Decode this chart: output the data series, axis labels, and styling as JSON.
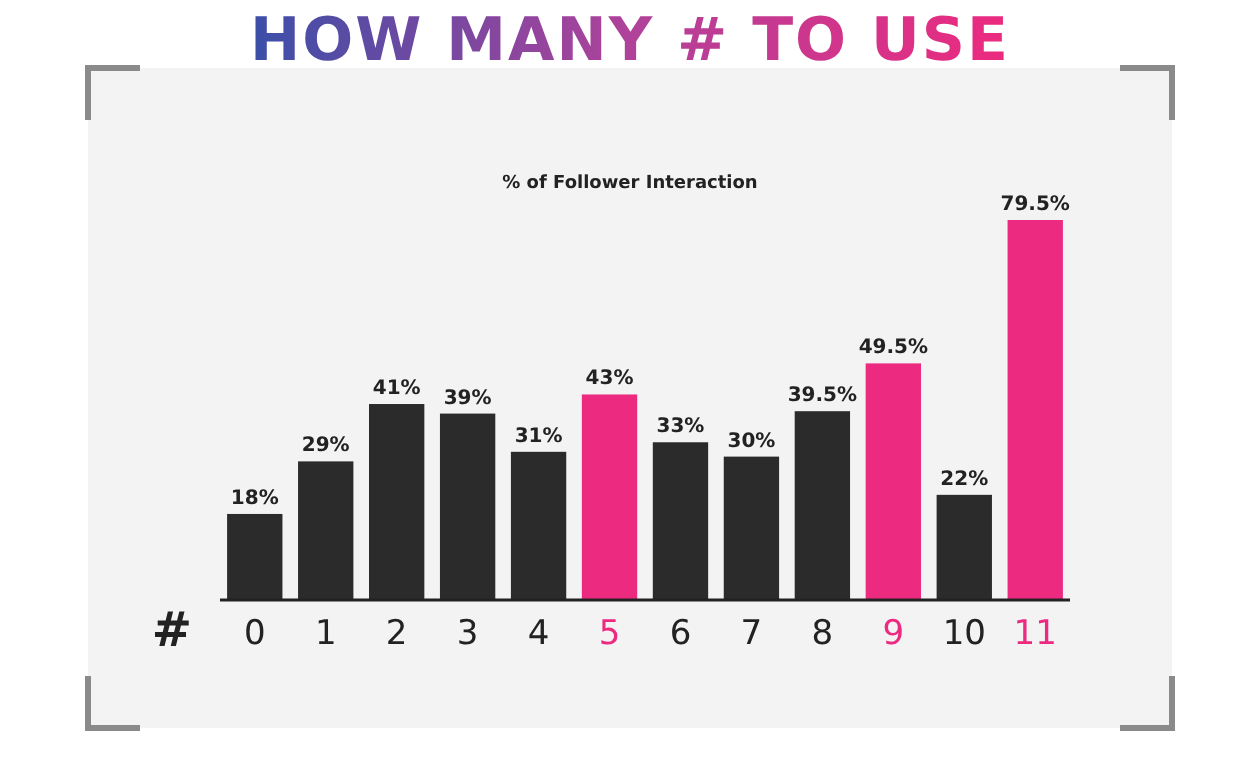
{
  "chart_data": {
    "type": "bar",
    "title": "HOW MANY # TO USE",
    "subtitle": "% of Follower Interaction",
    "xlabel": "#",
    "categories": [
      "0",
      "1",
      "2",
      "3",
      "4",
      "5",
      "6",
      "7",
      "8",
      "9",
      "10",
      "11"
    ],
    "values": [
      18,
      29,
      41,
      39,
      31,
      43,
      33,
      30,
      39.5,
      49.5,
      22,
      79.5
    ],
    "value_labels": [
      "18%",
      "29%",
      "41%",
      "39%",
      "31%",
      "43%",
      "33%",
      "30%",
      "39.5%",
      "49.5%",
      "22%",
      "79.5%"
    ],
    "colors": [
      "#2b2b2b",
      "#2b2b2b",
      "#2b2b2b",
      "#2b2b2b",
      "#2b2b2b",
      "#ec2a7f",
      "#2b2b2b",
      "#2b2b2b",
      "#2b2b2b",
      "#ec2a7f",
      "#2b2b2b",
      "#ec2a7f"
    ]
  }
}
